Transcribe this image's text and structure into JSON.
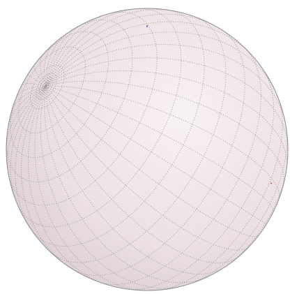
{
  "scene": {
    "object": "sphere-graticule",
    "background_color": "#ffffff",
    "sphere_fill_light": "#f8f1f2",
    "sphere_fill_mid": "#ece0e2",
    "sphere_fill_dark": "#d9cace",
    "outline_color": "#8f8f8f",
    "grid_color": "#9a9a9a",
    "grid_style": "dotted",
    "pole_view_tilt_deg": 58,
    "pole_view_rotation_deg": 212,
    "meridian_step_deg": 10,
    "parallel_step_deg": 10,
    "markers": [
      {
        "name": "blue-tick",
        "color": "#2b3cc4"
      },
      {
        "name": "red-tick",
        "color": "#c43b3b"
      }
    ]
  }
}
